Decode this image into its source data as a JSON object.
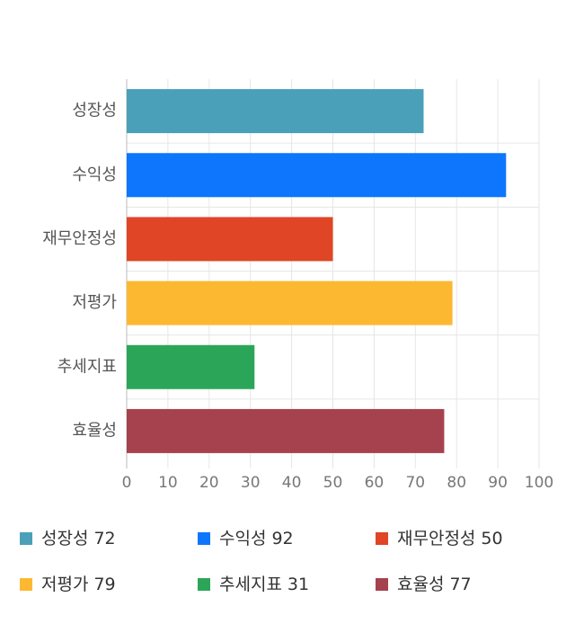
{
  "chart_data": {
    "type": "bar",
    "orientation": "horizontal",
    "categories": [
      "성장성",
      "수익성",
      "재무안정성",
      "저평가",
      "추세지표",
      "효율성"
    ],
    "values": [
      72,
      92,
      50,
      79,
      31,
      77
    ],
    "colors": [
      "#4aa0b8",
      "#0d76fd",
      "#e04526",
      "#fdb832",
      "#2ba659",
      "#a6424e"
    ],
    "xlim": [
      0,
      100
    ],
    "xticks": [
      0,
      10,
      20,
      30,
      40,
      50,
      60,
      70,
      80,
      90,
      100
    ],
    "grid": true,
    "legend": "bottom"
  }
}
